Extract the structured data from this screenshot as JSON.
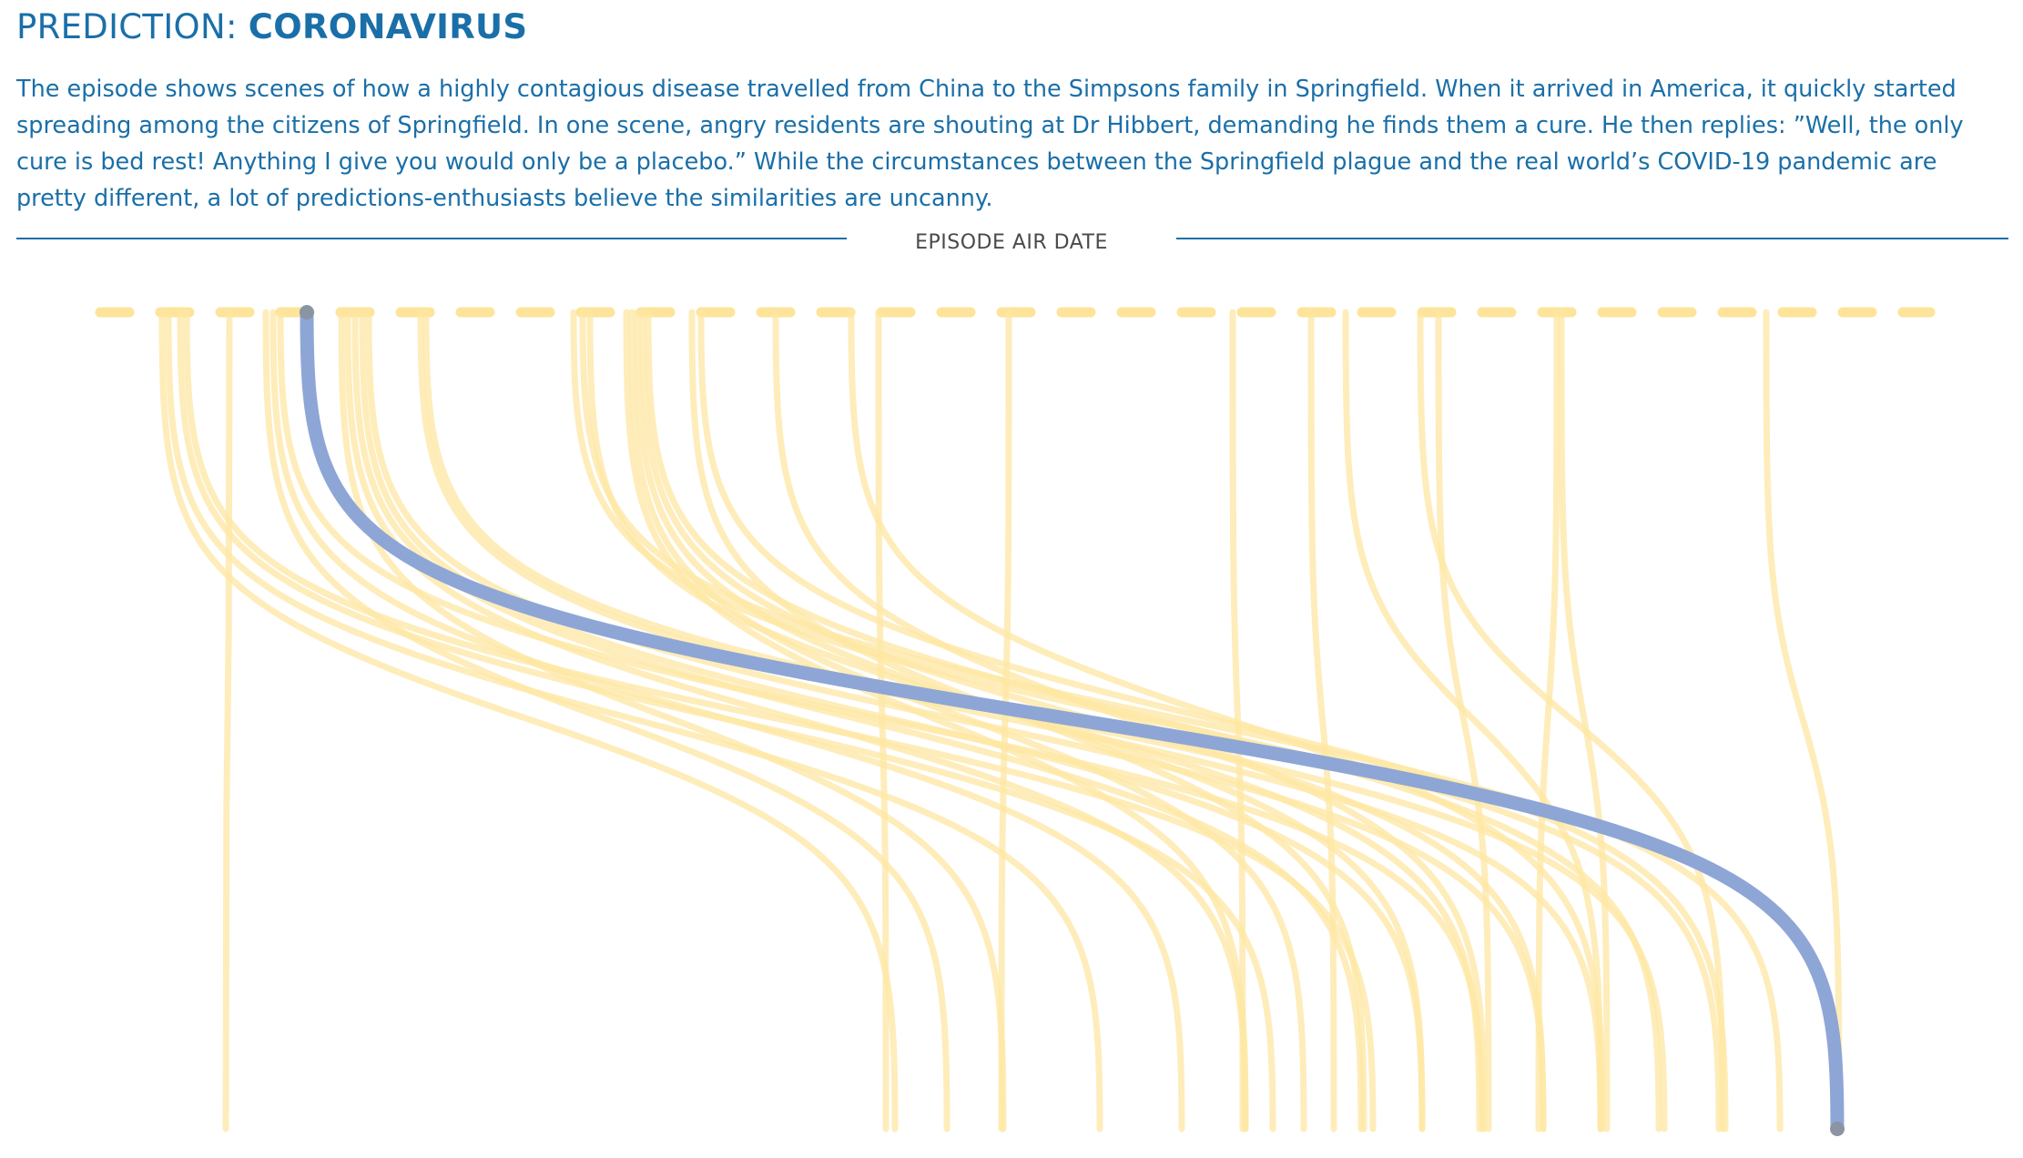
{
  "header": {
    "prefix": "PREDICTION: ",
    "name": "CORONAVIRUS"
  },
  "description": "The episode shows scenes of how a highly contagious disease travelled from China to the Simpsons family in Springfield. When it arrived in America, it quickly started spreading among the citizens of Springfield. In one scene, angry residents are shouting at Dr Hibbert, demanding he finds them a cure. He then replies: ”Well, the only cure is bed rest! Anything I give you would only be a placebo.” While the circumstances between the Springfield plague and the real world’s COVID-19 pandemic are pretty different, a lot of predictions-enthusiasts believe the similarities are uncanny.",
  "chart_data": {
    "type": "line",
    "axis_title": "EPISODE AIR DATE",
    "highlight": {
      "start_x": 337,
      "end_x": 2018
    },
    "series": [
      {
        "start_x": 178,
        "end_x": 983
      },
      {
        "start_x": 185,
        "end_x": 1208
      },
      {
        "start_x": 198,
        "end_x": 1398
      },
      {
        "start_x": 205,
        "end_x": 1508
      },
      {
        "start_x": 252,
        "end_x": 248
      },
      {
        "start_x": 292,
        "end_x": 1040
      },
      {
        "start_x": 300,
        "end_x": 1298
      },
      {
        "start_x": 308,
        "end_x": 1628
      },
      {
        "start_x": 375,
        "end_x": 1102
      },
      {
        "start_x": 382,
        "end_x": 1368
      },
      {
        "start_x": 390,
        "end_x": 1495
      },
      {
        "start_x": 398,
        "end_x": 1562
      },
      {
        "start_x": 405,
        "end_x": 1695
      },
      {
        "start_x": 462,
        "end_x": 1758
      },
      {
        "start_x": 468,
        "end_x": 1828
      },
      {
        "start_x": 630,
        "end_x": 1888
      },
      {
        "start_x": 640,
        "end_x": 1955
      },
      {
        "start_x": 648,
        "end_x": 1625
      },
      {
        "start_x": 688,
        "end_x": 1368
      },
      {
        "start_x": 694,
        "end_x": 1432
      },
      {
        "start_x": 700,
        "end_x": 1562
      },
      {
        "start_x": 706,
        "end_x": 1695
      },
      {
        "start_x": 712,
        "end_x": 1822
      },
      {
        "start_x": 760,
        "end_x": 1498
      },
      {
        "start_x": 770,
        "end_x": 1895
      },
      {
        "start_x": 852,
        "end_x": 1630
      },
      {
        "start_x": 935,
        "end_x": 1760
      },
      {
        "start_x": 965,
        "end_x": 973
      },
      {
        "start_x": 1108,
        "end_x": 1100
      },
      {
        "start_x": 1354,
        "end_x": 1365
      },
      {
        "start_x": 1440,
        "end_x": 1465
      },
      {
        "start_x": 1478,
        "end_x": 1758
      },
      {
        "start_x": 1560,
        "end_x": 1892
      },
      {
        "start_x": 1580,
        "end_x": 1635
      },
      {
        "start_x": 1710,
        "end_x": 1690
      },
      {
        "start_x": 1715,
        "end_x": 1765
      },
      {
        "start_x": 1940,
        "end_x": 2020
      }
    ],
    "top_dash_color": "#fde49a",
    "line_color": "#fde7a3",
    "highlight_color": "#8ea6d6"
  }
}
